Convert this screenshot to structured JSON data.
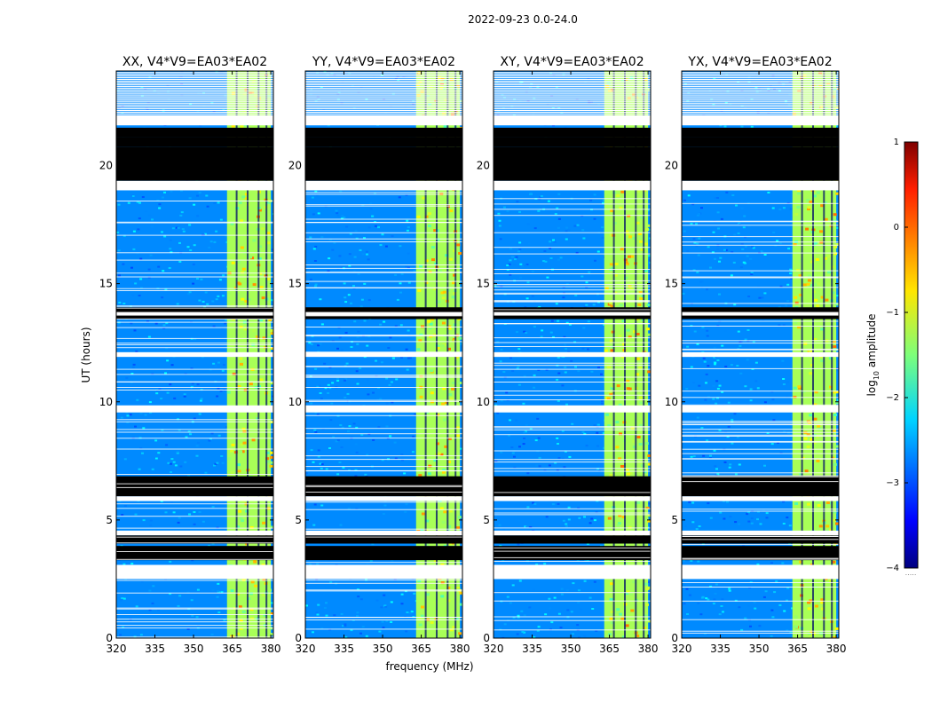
{
  "chart_data": {
    "type": "heatmap",
    "suptitle": "2022-09-23 0.0-24.0",
    "xlabel": "frequency (MHz)",
    "ylabel": "UT (hours)",
    "xlim": [
      320,
      381
    ],
    "ylim": [
      0,
      24
    ],
    "xticks": [
      320,
      335,
      350,
      365,
      380
    ],
    "yticks": [
      0,
      5,
      10,
      15,
      20
    ],
    "colorbar": {
      "label": "log10 amplitude",
      "label_main": "log",
      "label_sub": "10",
      "label_tail": " amplitude",
      "range": [
        -4,
        1
      ],
      "ticks": [
        -4,
        -3,
        -2,
        -1,
        0,
        1
      ],
      "tick_labels": [
        "−4",
        "−3",
        "−2",
        "−1",
        "0",
        "1"
      ],
      "colormap": "jet",
      "footer": "....."
    },
    "rfi_band_mhz": [
      363,
      380
    ],
    "rfi_band_level": -1.3,
    "background_level": -2.7,
    "blanked_ut_intervals": [
      [
        2.5,
        3.1
      ],
      [
        4.35,
        4.55
      ],
      [
        5.8,
        6.0
      ],
      [
        9.55,
        9.85
      ],
      [
        11.9,
        12.1
      ],
      [
        13.65,
        13.8
      ],
      [
        18.95,
        19.35
      ],
      [
        21.7,
        22.1
      ]
    ],
    "flagged_black_ut_intervals": [
      [
        3.3,
        3.9
      ],
      [
        4.0,
        4.35
      ],
      [
        6.0,
        6.85
      ],
      [
        13.5,
        14.0
      ],
      [
        19.35,
        20.8
      ],
      [
        20.8,
        21.2
      ],
      [
        21.2,
        21.6
      ]
    ],
    "panels": [
      {
        "title": "XX, V4*V9=EA03*EA02"
      },
      {
        "title": "YY, V4*V9=EA03*EA02"
      },
      {
        "title": "XY, V4*V9=EA03*EA02"
      },
      {
        "title": "YX, V4*V9=EA03*EA02"
      }
    ]
  }
}
